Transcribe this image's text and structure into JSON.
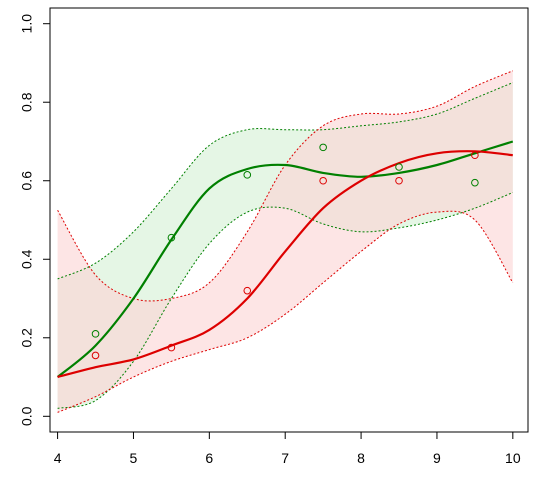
{
  "chart_data": {
    "type": "line",
    "title": "",
    "xlabel": "",
    "ylabel": "",
    "xlim": [
      3.9,
      10.2
    ],
    "ylim": [
      -0.04,
      1.04
    ],
    "x_ticks": [
      4,
      5,
      6,
      7,
      8,
      9,
      10
    ],
    "y_ticks": [
      0.0,
      0.2,
      0.4,
      0.6,
      0.8,
      1.0
    ],
    "x_tick_labels": [
      "4",
      "5",
      "6",
      "7",
      "8",
      "9",
      "10"
    ],
    "y_tick_labels": [
      "0.0",
      "0.2",
      "0.4",
      "0.6",
      "0.8",
      "1.0"
    ],
    "grid": false,
    "legend": "none",
    "series": [
      {
        "color": "#008000",
        "fill": "#d4f0d4",
        "curve_x": [
          4.0,
          4.5,
          5.0,
          5.5,
          6.0,
          6.5,
          7.0,
          7.5,
          8.0,
          8.5,
          9.0,
          9.5,
          10.0
        ],
        "curve_y": [
          0.1,
          0.18,
          0.3,
          0.45,
          0.58,
          0.63,
          0.64,
          0.62,
          0.61,
          0.62,
          0.64,
          0.67,
          0.7
        ],
        "upper": [
          0.35,
          0.39,
          0.47,
          0.58,
          0.69,
          0.73,
          0.73,
          0.73,
          0.74,
          0.75,
          0.77,
          0.81,
          0.85
        ],
        "lower": [
          0.02,
          0.04,
          0.14,
          0.3,
          0.44,
          0.52,
          0.53,
          0.49,
          0.47,
          0.48,
          0.5,
          0.53,
          0.57
        ],
        "points_x": [
          4.5,
          5.5,
          6.5,
          7.5,
          8.5,
          9.5
        ],
        "points_y": [
          0.21,
          0.455,
          0.615,
          0.685,
          0.635,
          0.595
        ]
      },
      {
        "color": "#dd0000",
        "fill": "#fbd4d4",
        "curve_x": [
          4.0,
          4.5,
          5.0,
          5.5,
          6.0,
          6.5,
          7.0,
          7.5,
          8.0,
          8.5,
          9.0,
          9.5,
          10.0
        ],
        "curve_y": [
          0.1,
          0.125,
          0.145,
          0.18,
          0.22,
          0.3,
          0.42,
          0.53,
          0.6,
          0.645,
          0.67,
          0.675,
          0.665
        ],
        "upper": [
          0.525,
          0.36,
          0.3,
          0.3,
          0.34,
          0.47,
          0.64,
          0.74,
          0.77,
          0.77,
          0.79,
          0.84,
          0.88
        ],
        "lower": [
          0.01,
          0.05,
          0.1,
          0.14,
          0.17,
          0.2,
          0.26,
          0.34,
          0.42,
          0.49,
          0.52,
          0.5,
          0.34
        ],
        "points_x": [
          4.5,
          5.5,
          6.5,
          7.5,
          8.5,
          9.5
        ],
        "points_y": [
          0.155,
          0.175,
          0.32,
          0.6,
          0.6,
          0.665
        ]
      }
    ]
  }
}
